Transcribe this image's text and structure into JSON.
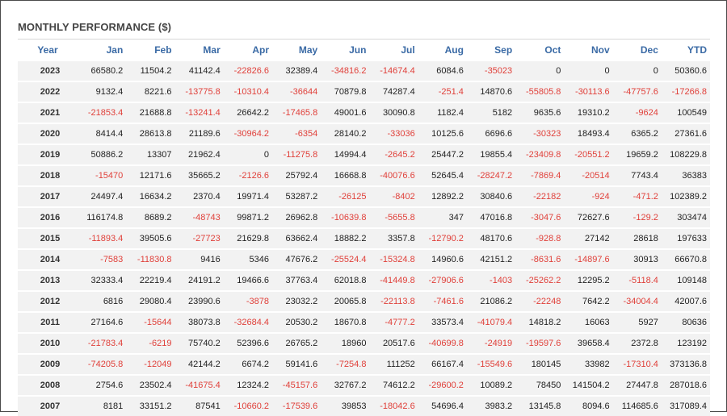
{
  "title": "MONTHLY PERFORMANCE ($)",
  "colors": {
    "header_text": "#3a6aa5",
    "negative": "#e0403a",
    "row_bg": "#f2f2f2"
  },
  "headers": [
    "Year",
    "Jan",
    "Feb",
    "Mar",
    "Apr",
    "May",
    "Jun",
    "Jul",
    "Aug",
    "Sep",
    "Oct",
    "Nov",
    "Dec",
    "YTD"
  ],
  "rows": [
    [
      "2023",
      "66580.2",
      "11504.2",
      "41142.4",
      "-22826.6",
      "32389.4",
      "-34816.2",
      "-14674.4",
      "6084.6",
      "-35023",
      "0",
      "0",
      "0",
      "50360.6"
    ],
    [
      "2022",
      "9132.4",
      "8221.6",
      "-13775.8",
      "-10310.4",
      "-36644",
      "70879.8",
      "74287.4",
      "-251.4",
      "14870.6",
      "-55805.8",
      "-30113.6",
      "-47757.6",
      "-17266.8"
    ],
    [
      "2021",
      "-21853.4",
      "21688.8",
      "-13241.4",
      "26642.2",
      "-17465.8",
      "49001.6",
      "30090.8",
      "1182.4",
      "5182",
      "9635.6",
      "19310.2",
      "-9624",
      "100549"
    ],
    [
      "2020",
      "8414.4",
      "28613.8",
      "21189.6",
      "-30964.2",
      "-6354",
      "28140.2",
      "-33036",
      "10125.6",
      "6696.6",
      "-30323",
      "18493.4",
      "6365.2",
      "27361.6"
    ],
    [
      "2019",
      "50886.2",
      "13307",
      "21962.4",
      "0",
      "-11275.8",
      "14994.4",
      "-2645.2",
      "25447.2",
      "19855.4",
      "-23409.8",
      "-20551.2",
      "19659.2",
      "108229.8"
    ],
    [
      "2018",
      "-15470",
      "12171.6",
      "35665.2",
      "-2126.6",
      "25792.4",
      "16668.8",
      "-40076.6",
      "52645.4",
      "-28247.2",
      "-7869.4",
      "-20514",
      "7743.4",
      "36383"
    ],
    [
      "2017",
      "24497.4",
      "16634.2",
      "2370.4",
      "19971.4",
      "53287.2",
      "-26125",
      "-8402",
      "12892.2",
      "30840.6",
      "-22182",
      "-924",
      "-471.2",
      "102389.2"
    ],
    [
      "2016",
      "116174.8",
      "8689.2",
      "-48743",
      "99871.2",
      "26962.8",
      "-10639.8",
      "-5655.8",
      "347",
      "47016.8",
      "-3047.6",
      "72627.6",
      "-129.2",
      "303474"
    ],
    [
      "2015",
      "-11893.4",
      "39505.6",
      "-27723",
      "21629.8",
      "63662.4",
      "18882.2",
      "3357.8",
      "-12790.2",
      "48170.6",
      "-928.8",
      "27142",
      "28618",
      "197633"
    ],
    [
      "2014",
      "-7583",
      "-11830.8",
      "9416",
      "5346",
      "47676.2",
      "-25524.4",
      "-15324.8",
      "14960.6",
      "42151.2",
      "-8631.6",
      "-14897.6",
      "30913",
      "66670.8"
    ],
    [
      "2013",
      "32333.4",
      "22219.4",
      "24191.2",
      "19466.6",
      "37763.4",
      "62018.8",
      "-41449.8",
      "-27906.6",
      "-1403",
      "-25262.2",
      "12295.2",
      "-5118.4",
      "109148"
    ],
    [
      "2012",
      "6816",
      "29080.4",
      "23990.6",
      "-3878",
      "23032.2",
      "20065.8",
      "-22113.8",
      "-7461.6",
      "21086.2",
      "-22248",
      "7642.2",
      "-34004.4",
      "42007.6"
    ],
    [
      "2011",
      "27164.6",
      "-15644",
      "38073.8",
      "-32684.4",
      "20530.2",
      "18670.8",
      "-4777.2",
      "33573.4",
      "-41079.4",
      "14818.2",
      "16063",
      "5927",
      "80636"
    ],
    [
      "2010",
      "-21783.4",
      "-6219",
      "75740.2",
      "52396.6",
      "26765.2",
      "18960",
      "20517.6",
      "-40699.8",
      "-24919",
      "-19597.6",
      "39658.4",
      "2372.8",
      "123192"
    ],
    [
      "2009",
      "-74205.8",
      "-12049",
      "42144.2",
      "6674.2",
      "59141.6",
      "-7254.8",
      "111252",
      "66167.4",
      "-15549.6",
      "180145",
      "33982",
      "-17310.4",
      "373136.8"
    ],
    [
      "2008",
      "2754.6",
      "23502.4",
      "-41675.4",
      "12324.2",
      "-45157.6",
      "32767.2",
      "74612.2",
      "-29600.2",
      "10089.2",
      "78450",
      "141504.2",
      "27447.8",
      "287018.6"
    ],
    [
      "2007",
      "8181",
      "33151.2",
      "87541",
      "-10660.2",
      "-17539.6",
      "39853",
      "-18042.6",
      "54696.4",
      "3983.2",
      "13145.8",
      "8094.6",
      "114685.6",
      "317089.4"
    ]
  ]
}
